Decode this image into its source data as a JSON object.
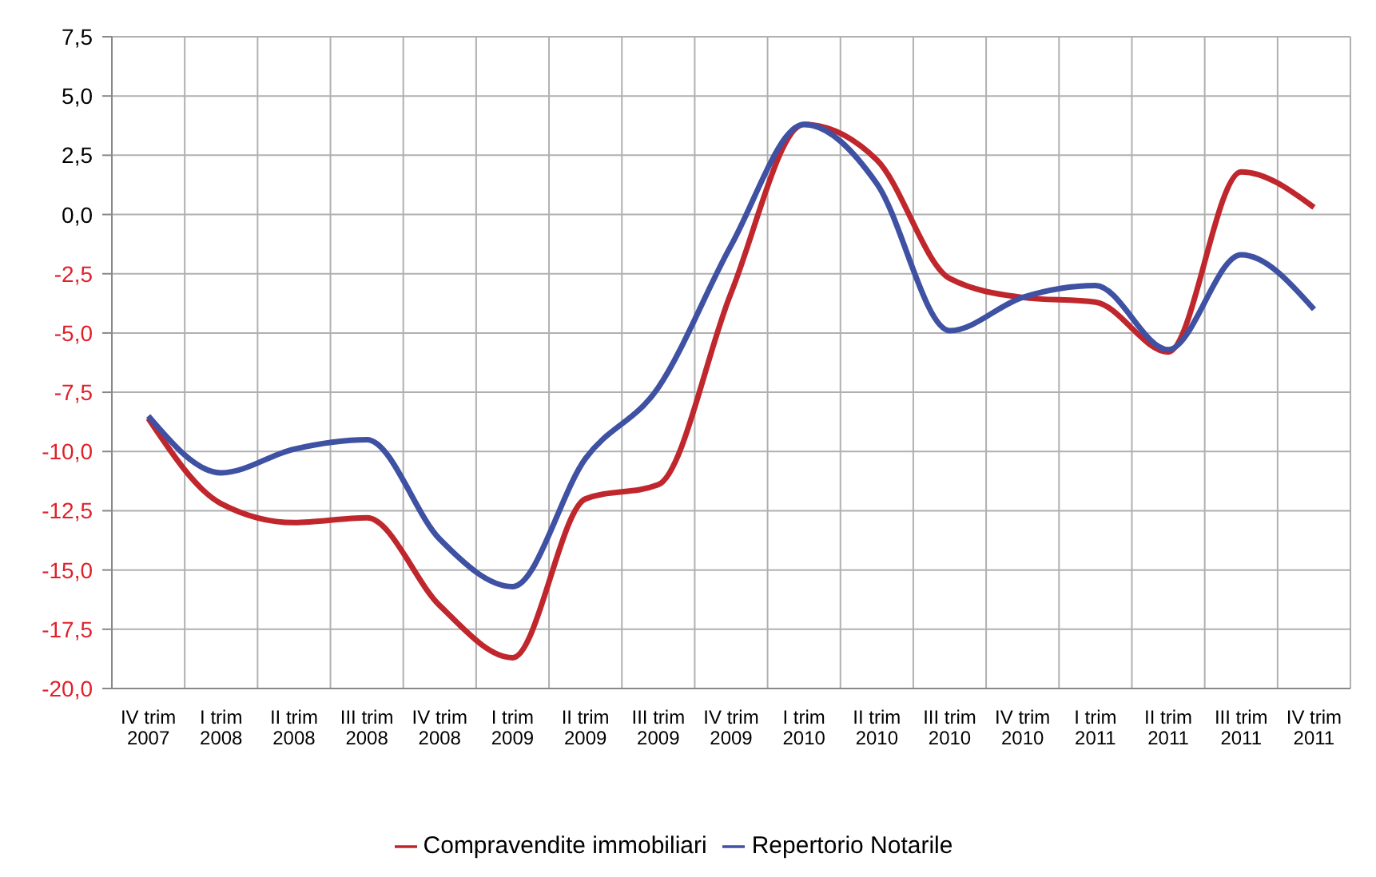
{
  "chart_data": {
    "type": "line",
    "categories": [
      "IV trim 2007",
      "I trim 2008",
      "II trim 2008",
      "III trim 2008",
      "IV trim 2008",
      "I trim 2009",
      "II trim 2009",
      "III trim 2009",
      "IV trim 2009",
      "I trim 2010",
      "II trim 2010",
      "III trim 2010",
      "IV trim 2010",
      "I trim 2011",
      "II trim 2011",
      "III trim 2011",
      "IV trim 2011"
    ],
    "series": [
      {
        "name": "Compravendite immobiliari",
        "color": "#c0272d",
        "values": [
          -8.6,
          -12.2,
          -13.0,
          -12.8,
          -16.5,
          -18.7,
          -12.0,
          -11.4,
          -3.3,
          3.8,
          2.3,
          -2.7,
          -3.5,
          -3.7,
          -5.8,
          1.8,
          0.3
        ]
      },
      {
        "name": "Repertorio Notarile",
        "color": "#3f51a3",
        "values": [
          -8.5,
          -10.9,
          -9.9,
          -9.5,
          -13.7,
          -15.7,
          -10.3,
          -7.3,
          -1.3,
          3.8,
          1.3,
          -4.9,
          -3.5,
          -3.0,
          -5.7,
          -1.7,
          -4.0
        ]
      }
    ],
    "ylim": [
      -20,
      7.5
    ],
    "yticks": [
      {
        "value": -20,
        "label": "-20,0"
      },
      {
        "value": -17.5,
        "label": "-17,5"
      },
      {
        "value": -15,
        "label": "-15,0"
      },
      {
        "value": -12.5,
        "label": "-12,5"
      },
      {
        "value": -10,
        "label": "-10,0"
      },
      {
        "value": -7.5,
        "label": "-7,5"
      },
      {
        "value": -5,
        "label": "-5,0"
      },
      {
        "value": -2.5,
        "label": "-2,5"
      },
      {
        "value": 0,
        "label": "0,0"
      },
      {
        "value": 2.5,
        "label": "2,5"
      },
      {
        "value": 5,
        "label": "5,0"
      },
      {
        "value": 7.5,
        "label": "7,5"
      }
    ],
    "grid": true,
    "legend": "bottom",
    "marker": "none",
    "line_style": "solid"
  }
}
